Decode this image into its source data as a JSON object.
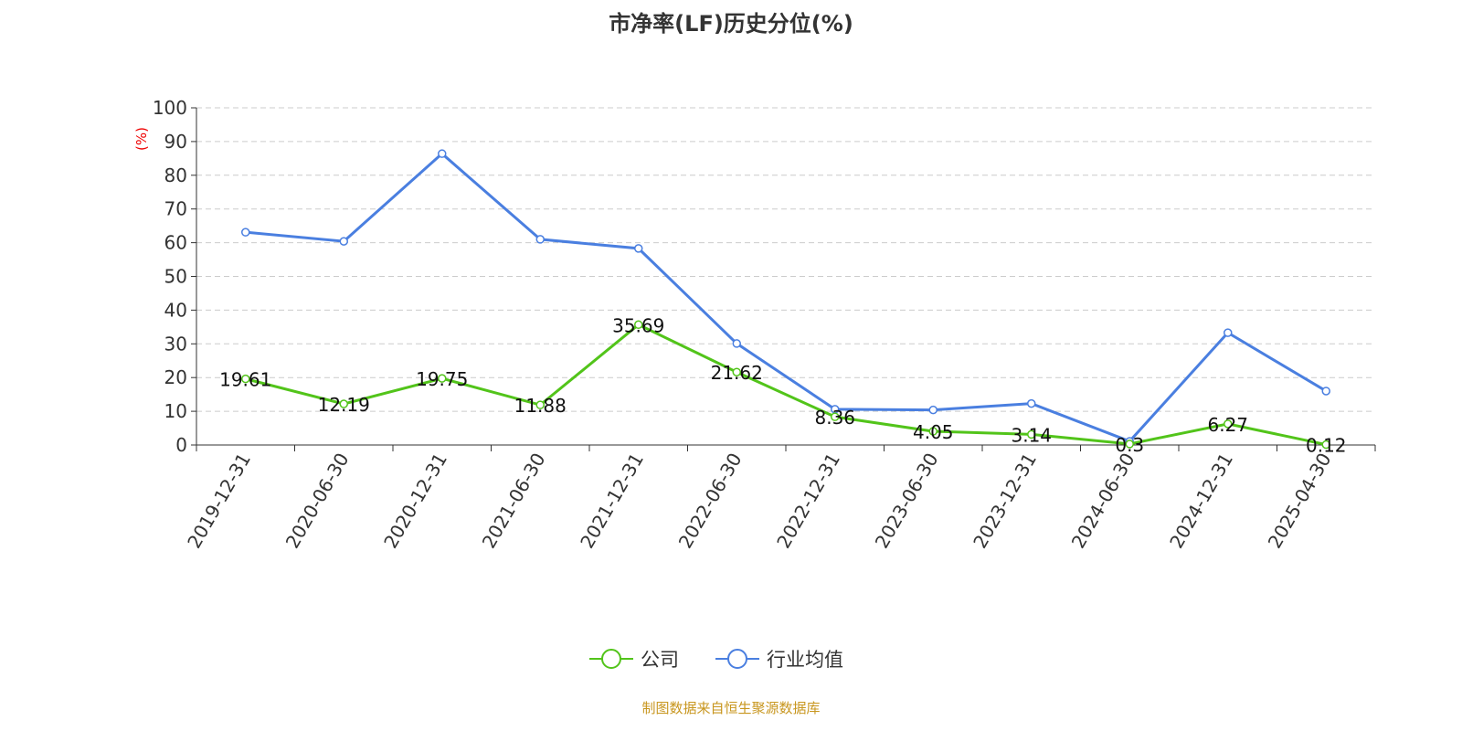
{
  "chart_data": {
    "type": "line",
    "title": "市净率(LF)历史分位(%)",
    "ylabel": "(%)",
    "xlabel": "",
    "ylim": [
      0,
      100
    ],
    "yticks": [
      0,
      10,
      20,
      30,
      40,
      50,
      60,
      70,
      80,
      90,
      100
    ],
    "grid": true,
    "legend_position": "bottom-center",
    "categories": [
      "2019-12-31",
      "2020-06-30",
      "2020-12-31",
      "2021-06-30",
      "2021-12-31",
      "2022-06-30",
      "2022-12-31",
      "2023-06-30",
      "2023-12-31",
      "2024-06-30",
      "2024-12-31",
      "2025-04-30"
    ],
    "series": [
      {
        "name": "公司",
        "color": "#52c41a",
        "values": [
          19.61,
          12.19,
          19.75,
          11.88,
          35.69,
          21.62,
          8.36,
          4.05,
          3.14,
          0.3,
          6.27,
          0.12
        ],
        "labels": [
          "19.61",
          "12.19",
          "19.75",
          "11.88",
          "35.69",
          "21.62",
          "8.36",
          "4.05",
          "3.14",
          "0.3",
          "6.27",
          "0.12"
        ]
      },
      {
        "name": "行业均值",
        "color": "#4a7fe0",
        "values": [
          63.1,
          60.4,
          86.4,
          61.0,
          58.3,
          30.1,
          10.6,
          10.4,
          12.3,
          1.1,
          33.3,
          16.0
        ]
      }
    ],
    "source": "制图数据来自恒生聚源数据库"
  }
}
